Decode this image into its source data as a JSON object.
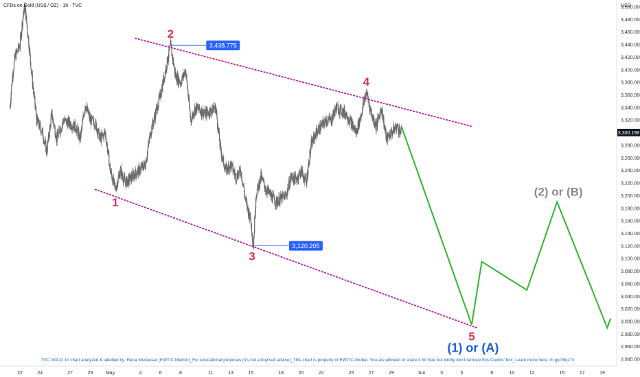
{
  "header": {
    "symbol_title": "CFDs on Gold (US$ / OZ) · 1h · TVC",
    "currency": "USD"
  },
  "colors": {
    "candle": "#6b6b6b",
    "wave_label": "#d6335b",
    "trendline": "#b61aa8",
    "projection": "#2db82d",
    "price_tag": "#2962ff",
    "projection_label_blue": "#1e5fe0",
    "projection_label_gray": "#8a8a8a",
    "last_price_tag": "#131722"
  },
  "chart_data": {
    "type": "line",
    "title": "CFDs on Gold (US$ / OZ) · 1h · TVC",
    "ylabel": "USD",
    "ylim": [
      2930,
      3520
    ],
    "y_ticks": [
      2940,
      2960,
      2980,
      3000,
      3020,
      3040,
      3060,
      3080,
      3100,
      3120,
      3140,
      3160,
      3180,
      3200,
      3220,
      3240,
      3260,
      3280,
      3300,
      3320,
      3340,
      3360,
      3380,
      3400,
      3420,
      3440,
      3460,
      3480,
      3500
    ],
    "x_tick_labels": [
      "22",
      "24",
      "27",
      "29",
      "May",
      "4",
      "6",
      "8",
      "11",
      "13",
      "15",
      "18",
      "20",
      "22",
      "25",
      "27",
      "29",
      "Jun",
      "3",
      "5",
      "8",
      "10",
      "12",
      "15",
      "17",
      "19"
    ],
    "x_tick_dates": [
      "2025-04-22",
      "2025-04-24",
      "2025-04-27",
      "2025-04-29",
      "2025-05-01",
      "2025-05-04",
      "2025-05-06",
      "2025-05-08",
      "2025-05-11",
      "2025-05-13",
      "2025-05-15",
      "2025-05-18",
      "2025-05-20",
      "2025-05-22",
      "2025-05-25",
      "2025-05-27",
      "2025-05-29",
      "2025-06-01",
      "2025-06-03",
      "2025-06-05",
      "2025-06-08",
      "2025-06-10",
      "2025-06-12",
      "2025-06-15",
      "2025-06-17",
      "2025-06-19"
    ],
    "series": [
      {
        "kind": "price",
        "points": [
          [
            "2025-04-21 00:00",
            3340
          ],
          [
            "2025-04-21 06:00",
            3390
          ],
          [
            "2025-04-21 12:00",
            3420
          ],
          [
            "2025-04-22 00:00",
            3440
          ],
          [
            "2025-04-22 08:00",
            3490
          ],
          [
            "2025-04-22 12:00",
            3500
          ],
          [
            "2025-04-22 20:00",
            3450
          ],
          [
            "2025-04-23 06:00",
            3380
          ],
          [
            "2025-04-23 16:00",
            3320
          ],
          [
            "2025-04-24 06:00",
            3300
          ],
          [
            "2025-04-24 16:00",
            3270
          ],
          [
            "2025-04-25 04:00",
            3330
          ],
          [
            "2025-04-25 16:00",
            3290
          ],
          [
            "2025-04-26 08:00",
            3320
          ],
          [
            "2025-04-27 12:00",
            3310
          ],
          [
            "2025-04-28 00:00",
            3290
          ],
          [
            "2025-04-28 12:00",
            3345
          ],
          [
            "2025-04-29 00:00",
            3320
          ],
          [
            "2025-04-29 12:00",
            3315
          ],
          [
            "2025-04-30 00:00",
            3290
          ],
          [
            "2025-04-30 12:00",
            3300
          ],
          [
            "2025-05-01 00:00",
            3240
          ],
          [
            "2025-05-01 12:00",
            3210
          ],
          [
            "2025-05-02 00:00",
            3240
          ],
          [
            "2025-05-02 12:00",
            3220
          ],
          [
            "2025-05-03 12:00",
            3235
          ],
          [
            "2025-05-04 12:00",
            3250
          ],
          [
            "2025-05-05 00:00",
            3300
          ],
          [
            "2025-05-05 12:00",
            3330
          ],
          [
            "2025-05-06 00:00",
            3360
          ],
          [
            "2025-05-06 12:00",
            3400
          ],
          [
            "2025-05-07 00:00",
            3438.775
          ],
          [
            "2025-05-07 12:00",
            3390
          ],
          [
            "2025-05-08 00:00",
            3380
          ],
          [
            "2025-05-08 12:00",
            3400
          ],
          [
            "2025-05-09 00:00",
            3320
          ],
          [
            "2025-05-09 12:00",
            3340
          ],
          [
            "2025-05-10 12:00",
            3330
          ],
          [
            "2025-05-11 12:00",
            3340
          ],
          [
            "2025-05-12 00:00",
            3270
          ],
          [
            "2025-05-12 12:00",
            3240
          ],
          [
            "2025-05-13 00:00",
            3250
          ],
          [
            "2025-05-13 12:00",
            3230
          ],
          [
            "2025-05-14 00:00",
            3240
          ],
          [
            "2025-05-14 12:00",
            3190
          ],
          [
            "2025-05-15 00:00",
            3160
          ],
          [
            "2025-05-15 06:00",
            3120.205
          ],
          [
            "2025-05-15 12:00",
            3200
          ],
          [
            "2025-05-16 00:00",
            3230
          ],
          [
            "2025-05-16 12:00",
            3210
          ],
          [
            "2025-05-17 12:00",
            3190
          ],
          [
            "2025-05-18 12:00",
            3200
          ],
          [
            "2025-05-19 00:00",
            3230
          ],
          [
            "2025-05-19 12:00",
            3225
          ],
          [
            "2025-05-20 00:00",
            3240
          ],
          [
            "2025-05-20 12:00",
            3220
          ],
          [
            "2025-05-21 00:00",
            3280
          ],
          [
            "2025-05-21 12:00",
            3300
          ],
          [
            "2025-05-22 00:00",
            3310
          ],
          [
            "2025-05-22 12:00",
            3320
          ],
          [
            "2025-05-23 00:00",
            3320
          ],
          [
            "2025-05-23 12:00",
            3340
          ],
          [
            "2025-05-24 12:00",
            3330
          ],
          [
            "2025-05-25 12:00",
            3300
          ],
          [
            "2025-05-26 00:00",
            3330
          ],
          [
            "2025-05-26 12:00",
            3365
          ],
          [
            "2025-05-27 00:00",
            3330
          ],
          [
            "2025-05-27 12:00",
            3310
          ],
          [
            "2025-05-28 00:00",
            3340
          ],
          [
            "2025-05-28 12:00",
            3290
          ],
          [
            "2025-05-29 00:00",
            3300
          ],
          [
            "2025-05-29 12:00",
            3310
          ],
          [
            "2025-05-30 00:00",
            3300.198
          ]
        ]
      },
      {
        "kind": "projection",
        "points": [
          [
            "2025-05-30 00:00",
            3310
          ],
          [
            "2025-06-06 00:00",
            2995
          ],
          [
            "2025-06-07 00:00",
            3095
          ],
          [
            "2025-06-11 12:00",
            3050
          ],
          [
            "2025-06-14 12:00",
            3190
          ],
          [
            "2025-06-19 12:00",
            2990
          ],
          [
            "2025-06-19 20:00",
            3005
          ]
        ]
      }
    ],
    "trendlines": [
      {
        "name": "upper",
        "from": [
          "2025-05-03 12:00",
          3450
        ],
        "to": [
          "2025-06-06 00:00",
          3310
        ]
      },
      {
        "name": "lower",
        "from": [
          "2025-04-29 12:00",
          3210
        ],
        "to": [
          "2025-06-06 12:00",
          2990
        ]
      }
    ],
    "wave_labels": [
      {
        "text": "1",
        "date": "2025-05-01 12:00",
        "price": 3205
      },
      {
        "text": "2",
        "date": "2025-05-07 00:00",
        "price": 3438.775
      },
      {
        "text": "3",
        "date": "2025-05-15 06:00",
        "price": 3120.205
      },
      {
        "text": "4",
        "date": "2025-05-26 12:00",
        "price": 3365
      },
      {
        "text": "5",
        "date": "2025-06-06 00:00",
        "price": 2995
      }
    ],
    "price_tags": [
      {
        "text": "3,438.775",
        "date": "2025-05-07 00:00",
        "price": 3438.775
      },
      {
        "text": "3,120.205",
        "date": "2025-05-15 06:00",
        "price": 3120.205
      }
    ],
    "last_price": {
      "value": 3300.198,
      "text": "3,300.198"
    },
    "projection_labels": [
      {
        "text": "(1) or (A)",
        "date": "2025-06-06 00:00",
        "price": 2995
      },
      {
        "text": "(2) or (B)",
        "date": "2025-06-14 12:00",
        "price": 3190
      }
    ],
    "footer": "TVC  GOLD 1h  chart analyzed & labelled by: Rana Mudassar (EWTIC Mentor)_For educational purposes (it's not a buy/sell advice)_This chart is property of EWTIC-Global. You are allowed to share it for free but kindly don't remove this Credits' box_Learn more here: rb.gy/39qz7x"
  }
}
